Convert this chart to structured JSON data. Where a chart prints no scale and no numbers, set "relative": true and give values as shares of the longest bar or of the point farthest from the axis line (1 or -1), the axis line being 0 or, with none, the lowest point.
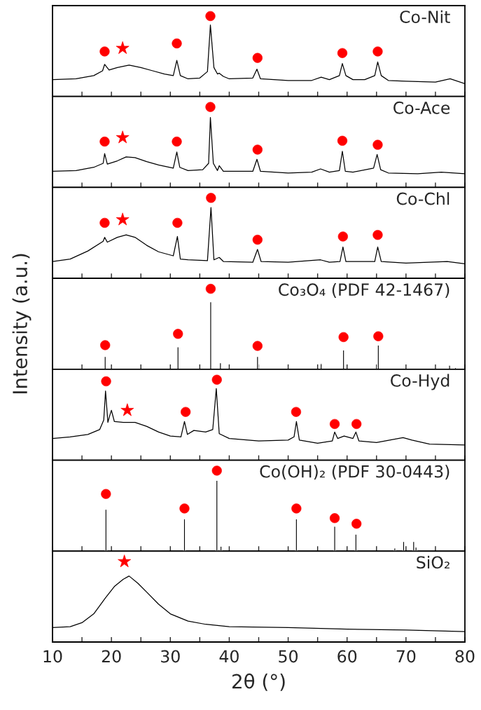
{
  "chart_data": [
    {
      "type": "line",
      "relative": true,
      "xlim": [
        10,
        80
      ],
      "tick_labels": false,
      "annotations": [
        "Co-Nit"
      ],
      "xticks": [
        10,
        {
          "value": 15,
          "label": null
        },
        20,
        {
          "value": 25,
          "label": null
        },
        30,
        {
          "value": 35,
          "label": null
        },
        40,
        {
          "value": 45,
          "label": null
        },
        50,
        {
          "value": 55,
          "label": null
        },
        60,
        {
          "value": 65,
          "label": null
        },
        70,
        {
          "value": 75,
          "label": null
        },
        80
      ],
      "series": [
        {
          "color": "#000000",
          "x": [
            10,
            14,
            17,
            18.5,
            18.85,
            19.6,
            21,
            23,
            25,
            27,
            29,
            30.5,
            31.1,
            31.7,
            33,
            35,
            36.3,
            36.8,
            37.4,
            38,
            38.3,
            39,
            40,
            44,
            44.7,
            45.3,
            50,
            54,
            55.6,
            57,
            58.7,
            59.2,
            59.8,
            61,
            63,
            64.7,
            65.2,
            65.8,
            67,
            70,
            75,
            77.5,
            80
          ],
          "values": [
            0.21,
            0.22,
            0.26,
            0.32,
            0.4,
            0.33,
            0.36,
            0.39,
            0.36,
            0.32,
            0.28,
            0.26,
            0.45,
            0.26,
            0.22,
            0.23,
            0.31,
            0.89,
            0.36,
            0.28,
            0.29,
            0.25,
            0.22,
            0.23,
            0.34,
            0.22,
            0.2,
            0.2,
            0.24,
            0.21,
            0.26,
            0.41,
            0.26,
            0.21,
            0.21,
            0.26,
            0.43,
            0.26,
            0.2,
            0.19,
            0.18,
            0.22,
            0.16
          ]
        },
        {
          "type": "scatter",
          "marker": "circle",
          "color": "#ff0000",
          "x": [
            18.85,
            31.1,
            36.8,
            44.8,
            59.2,
            65.2
          ],
          "values": [
            0.56,
            0.66,
            1.0,
            0.48,
            0.54,
            0.56
          ]
        },
        {
          "type": "scatter",
          "marker": "star",
          "color": "#ff0000",
          "x": [
            21.9
          ],
          "values": [
            0.6
          ]
        }
      ]
    },
    {
      "type": "line",
      "relative": true,
      "xlim": [
        10,
        80
      ],
      "tick_labels": false,
      "annotations": [
        "Co-Ace"
      ],
      "xticks": [
        10,
        {
          "value": 15,
          "label": null
        },
        20,
        {
          "value": 25,
          "label": null
        },
        30,
        {
          "value": 35,
          "label": null
        },
        40,
        {
          "value": 45,
          "label": null
        },
        50,
        {
          "value": 55,
          "label": null
        },
        60,
        {
          "value": 65,
          "label": null
        },
        70,
        {
          "value": 75,
          "label": null
        },
        80
      ],
      "series": [
        {
          "color": "#000000",
          "x": [
            10,
            14,
            17,
            18.6,
            18.85,
            19.3,
            21,
            22.5,
            24,
            26,
            28,
            30.5,
            31.1,
            31.6,
            33,
            35.5,
            36.5,
            36.8,
            37.3,
            38,
            38.3,
            39,
            44,
            44.7,
            45.3,
            50,
            54,
            55.5,
            57,
            58.7,
            59.2,
            59.7,
            61,
            64.5,
            65.1,
            65.7,
            67,
            72,
            76,
            80
          ],
          "values": [
            0.2,
            0.21,
            0.25,
            0.3,
            0.42,
            0.29,
            0.33,
            0.38,
            0.37,
            0.32,
            0.28,
            0.24,
            0.44,
            0.25,
            0.21,
            0.22,
            0.3,
            0.87,
            0.3,
            0.21,
            0.27,
            0.2,
            0.2,
            0.35,
            0.2,
            0.18,
            0.19,
            0.23,
            0.19,
            0.21,
            0.45,
            0.2,
            0.19,
            0.24,
            0.41,
            0.22,
            0.18,
            0.17,
            0.19,
            0.17
          ]
        },
        {
          "type": "scatter",
          "marker": "circle",
          "color": "#ff0000",
          "x": [
            18.85,
            31.1,
            36.8,
            44.8,
            59.2,
            65.2
          ],
          "values": [
            0.57,
            0.57,
            1.0,
            0.47,
            0.58,
            0.53
          ]
        },
        {
          "type": "scatter",
          "marker": "star",
          "color": "#ff0000",
          "x": [
            21.9
          ],
          "values": [
            0.62
          ]
        }
      ]
    },
    {
      "type": "line",
      "relative": true,
      "xlim": [
        10,
        80
      ],
      "tick_labels": false,
      "annotations": [
        "Co-Chl"
      ],
      "xticks": [
        10,
        {
          "value": 15,
          "label": null
        },
        20,
        {
          "value": 25,
          "label": null
        },
        30,
        {
          "value": 35,
          "label": null
        },
        40,
        {
          "value": 45,
          "label": null
        },
        50,
        {
          "value": 55,
          "label": null
        },
        60,
        {
          "value": 65,
          "label": null
        },
        70,
        {
          "value": 75,
          "label": null
        },
        80
      ],
      "series": [
        {
          "color": "#000000",
          "x": [
            10,
            13,
            16,
            18.6,
            18.85,
            19.3,
            21,
            22.5,
            24,
            26,
            28,
            30.5,
            31.2,
            31.7,
            33,
            36.3,
            36.9,
            37.4,
            38.3,
            39,
            44,
            44.8,
            45.4,
            50,
            55.5,
            57,
            58.8,
            59.3,
            59.8,
            64.7,
            65.2,
            65.8,
            70,
            77,
            80
          ],
          "values": [
            0.21,
            0.24,
            0.34,
            0.46,
            0.51,
            0.45,
            0.51,
            0.54,
            0.51,
            0.41,
            0.33,
            0.28,
            0.52,
            0.24,
            0.23,
            0.22,
            0.88,
            0.23,
            0.26,
            0.21,
            0.2,
            0.36,
            0.21,
            0.2,
            0.23,
            0.2,
            0.21,
            0.39,
            0.21,
            0.21,
            0.39,
            0.21,
            0.19,
            0.21,
            0.18
          ]
        },
        {
          "type": "scatter",
          "marker": "circle",
          "color": "#ff0000",
          "x": [
            18.85,
            31.2,
            36.9,
            44.8,
            59.3,
            65.2
          ],
          "values": [
            0.69,
            0.69,
            1.0,
            0.48,
            0.52,
            0.54
          ]
        },
        {
          "type": "scatter",
          "marker": "star",
          "color": "#ff0000",
          "x": [
            21.9
          ],
          "values": [
            0.73
          ]
        }
      ]
    },
    {
      "type": "bar",
      "relative": true,
      "xlim": [
        10,
        80
      ],
      "tick_labels": false,
      "annotations": [
        "Co₃O₄ (PDF 42-1467)"
      ],
      "ylabel": "Intensity (a.u.)",
      "xticks": [
        10,
        {
          "value": 15,
          "label": null
        },
        20,
        {
          "value": 25,
          "label": null
        },
        30,
        {
          "value": 35,
          "label": null
        },
        40,
        {
          "value": 45,
          "label": null
        },
        50,
        {
          "value": 55,
          "label": null
        },
        60,
        {
          "value": 65,
          "label": null
        },
        70,
        {
          "value": 75,
          "label": null
        },
        80
      ],
      "series": [
        {
          "color": "#000000",
          "x": [
            18.94,
            31.3,
            36.85,
            38.5,
            44.8,
            55.6,
            59.4,
            65.3,
            77.4,
            78.4
          ],
          "values": [
            0.16,
            0.28,
            0.84,
            0.08,
            0.16,
            0.07,
            0.24,
            0.3,
            0.05,
            0.02
          ]
        },
        {
          "type": "scatter",
          "marker": "circle",
          "color": "#ff0000",
          "x": [
            18.94,
            31.3,
            36.85,
            44.8,
            59.4,
            65.3
          ],
          "values": [
            0.3,
            0.44,
            1.0,
            0.29,
            0.4,
            0.41
          ]
        }
      ]
    },
    {
      "type": "line",
      "relative": true,
      "xlim": [
        10,
        80
      ],
      "tick_labels": false,
      "annotations": [
        "Co-Hyd"
      ],
      "xticks": [
        10,
        {
          "value": 15,
          "label": null
        },
        20,
        {
          "value": 25,
          "label": null
        },
        30,
        {
          "value": 35,
          "label": null
        },
        40,
        {
          "value": 45,
          "label": null
        },
        50,
        {
          "value": 55,
          "label": null
        },
        60,
        {
          "value": 65,
          "label": null
        },
        70,
        {
          "value": 75,
          "label": null
        },
        80
      ],
      "series": [
        {
          "color": "#000000",
          "x": [
            10,
            13,
            16,
            18,
            18.7,
            19.0,
            19.4,
            19.7,
            20.0,
            20.5,
            22,
            24,
            26,
            28,
            30,
            31.8,
            32.4,
            32.9,
            34,
            36,
            37.2,
            37.8,
            38.3,
            40,
            45,
            50,
            51.0,
            51.4,
            51.9,
            55,
            57.5,
            57.9,
            58.4,
            59.5,
            61,
            61.5,
            62,
            65,
            69.5,
            71,
            74,
            80
          ],
          "values": [
            0.27,
            0.29,
            0.32,
            0.38,
            0.5,
            0.86,
            0.47,
            0.55,
            0.62,
            0.48,
            0.47,
            0.47,
            0.42,
            0.35,
            0.3,
            0.29,
            0.48,
            0.32,
            0.37,
            0.35,
            0.38,
            0.89,
            0.33,
            0.27,
            0.24,
            0.25,
            0.29,
            0.48,
            0.25,
            0.21,
            0.24,
            0.35,
            0.27,
            0.3,
            0.27,
            0.35,
            0.24,
            0.22,
            0.28,
            0.25,
            0.2,
            0.19
          ]
        },
        {
          "type": "scatter",
          "marker": "circle",
          "color": "#ff0000",
          "x": [
            19.1,
            32.6,
            37.9,
            51.35,
            57.9,
            61.6
          ],
          "values": [
            0.98,
            0.6,
            1.0,
            0.6,
            0.45,
            0.45
          ]
        },
        {
          "type": "scatter",
          "marker": "star",
          "color": "#ff0000",
          "x": [
            22.7
          ],
          "values": [
            0.62
          ]
        }
      ]
    },
    {
      "type": "bar",
      "relative": true,
      "xlim": [
        10,
        80
      ],
      "tick_labels": false,
      "annotations": [
        "Co(OH)₂ (PDF 30-0443)"
      ],
      "xticks": [
        10,
        {
          "value": 15,
          "label": null
        },
        20,
        {
          "value": 25,
          "label": null
        },
        30,
        {
          "value": 35,
          "label": null
        },
        40,
        {
          "value": 45,
          "label": null
        },
        50,
        {
          "value": 55,
          "label": null
        },
        60,
        {
          "value": 65,
          "label": null
        },
        70,
        {
          "value": 75,
          "label": null
        },
        80
      ],
      "series": [
        {
          "color": "#000000",
          "x": [
            19.07,
            32.4,
            37.9,
            38.6,
            51.4,
            57.9,
            61.5,
            68.1,
            69.6,
            71.3,
            71.7
          ],
          "values": [
            0.52,
            0.4,
            0.88,
            0.06,
            0.4,
            0.31,
            0.21,
            0.04,
            0.12,
            0.12,
            0.05
          ]
        },
        {
          "type": "scatter",
          "marker": "circle",
          "color": "#ff0000",
          "x": [
            19.07,
            32.4,
            37.9,
            51.4,
            57.9,
            61.6
          ],
          "values": [
            0.71,
            0.53,
            1.0,
            0.53,
            0.41,
            0.34
          ]
        }
      ]
    },
    {
      "type": "line",
      "relative": true,
      "xlim": [
        10,
        80
      ],
      "tick_labels": "x",
      "annotations": [
        "SiO₂"
      ],
      "xlabel": "2θ (°)",
      "xticks": [
        10,
        {
          "value": 15,
          "label": null
        },
        20,
        {
          "value": 25,
          "label": null
        },
        30,
        {
          "value": 35,
          "label": null
        },
        40,
        {
          "value": 45,
          "label": null
        },
        50,
        {
          "value": 55,
          "label": null
        },
        60,
        {
          "value": 65,
          "label": null
        },
        70,
        {
          "value": 75,
          "label": null
        },
        80
      ],
      "series": [
        {
          "color": "#000000",
          "x": [
            10,
            13,
            15,
            17,
            19,
            20.5,
            22,
            23,
            24.5,
            26,
            28,
            30,
            33,
            36,
            40,
            50,
            60,
            70,
            80
          ],
          "values": [
            0.18,
            0.19,
            0.24,
            0.35,
            0.55,
            0.69,
            0.78,
            0.82,
            0.73,
            0.62,
            0.47,
            0.35,
            0.26,
            0.22,
            0.19,
            0.18,
            0.16,
            0.15,
            0.13
          ]
        },
        {
          "type": "scatter",
          "marker": "star",
          "color": "#ff0000",
          "x": [
            22.2
          ],
          "values": [
            1.0
          ]
        }
      ]
    }
  ]
}
